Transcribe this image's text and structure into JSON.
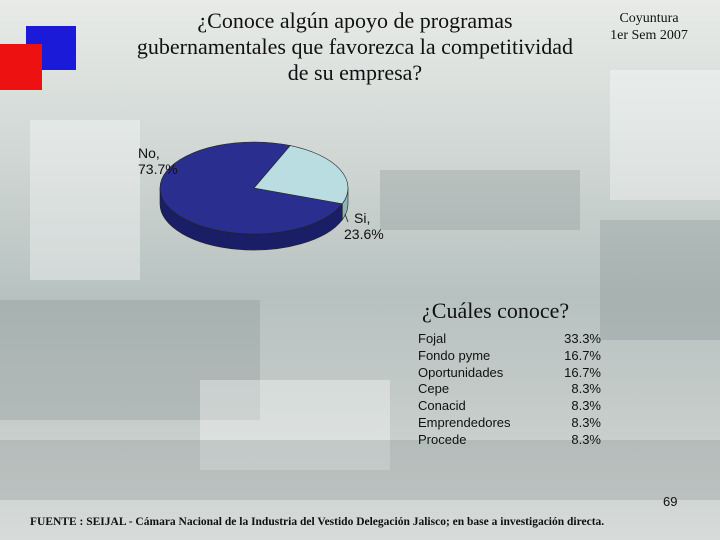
{
  "title": "¿Conoce algún apoyo de programas gubernamentales que favorezca la competitividad de su empresa?",
  "title_lines": [
    "¿Conoce algún apoyo de programas",
    "gubernamentales que favorezca la competitividad",
    "de su empresa?"
  ],
  "period": {
    "line1": "Coyuntura",
    "line2": "1er Sem 2007"
  },
  "colors": {
    "no": "#2a2f8f",
    "si": "#b9dde0",
    "no_side": "#1a1e66",
    "si_side": "#8fb3b6",
    "square_blue": "#1a1ad8",
    "square_red": "#ee1111"
  },
  "chart_data": {
    "type": "pie",
    "slices": [
      {
        "label": "No",
        "value": 73.7,
        "display": "73.7%"
      },
      {
        "label": "Si",
        "value": 23.6,
        "display": "23.6%"
      }
    ]
  },
  "pie_labels": {
    "no_name": "No,",
    "no_value": "73.7%",
    "si_name": "Si,",
    "si_value": "23.6%"
  },
  "subtitle": "¿Cuáles conoce?",
  "programs": [
    {
      "name": "Fojal",
      "pct": "33.3%"
    },
    {
      "name": "Fondo pyme",
      "pct": "16.7%"
    },
    {
      "name": "Oportunidades",
      "pct": "16.7%"
    },
    {
      "name": "Cepe",
      "pct": "8.3%"
    },
    {
      "name": "Conacid",
      "pct": "8.3%"
    },
    {
      "name": "Emprendedores",
      "pct": "8.3%"
    },
    {
      "name": "Procede",
      "pct": "8.3%"
    }
  ],
  "page_number": "69",
  "source": "FUENTE : SEIJAL - Cámara Nacional de la Industria del Vestido Delegación Jalisco; en base a investigación directa."
}
